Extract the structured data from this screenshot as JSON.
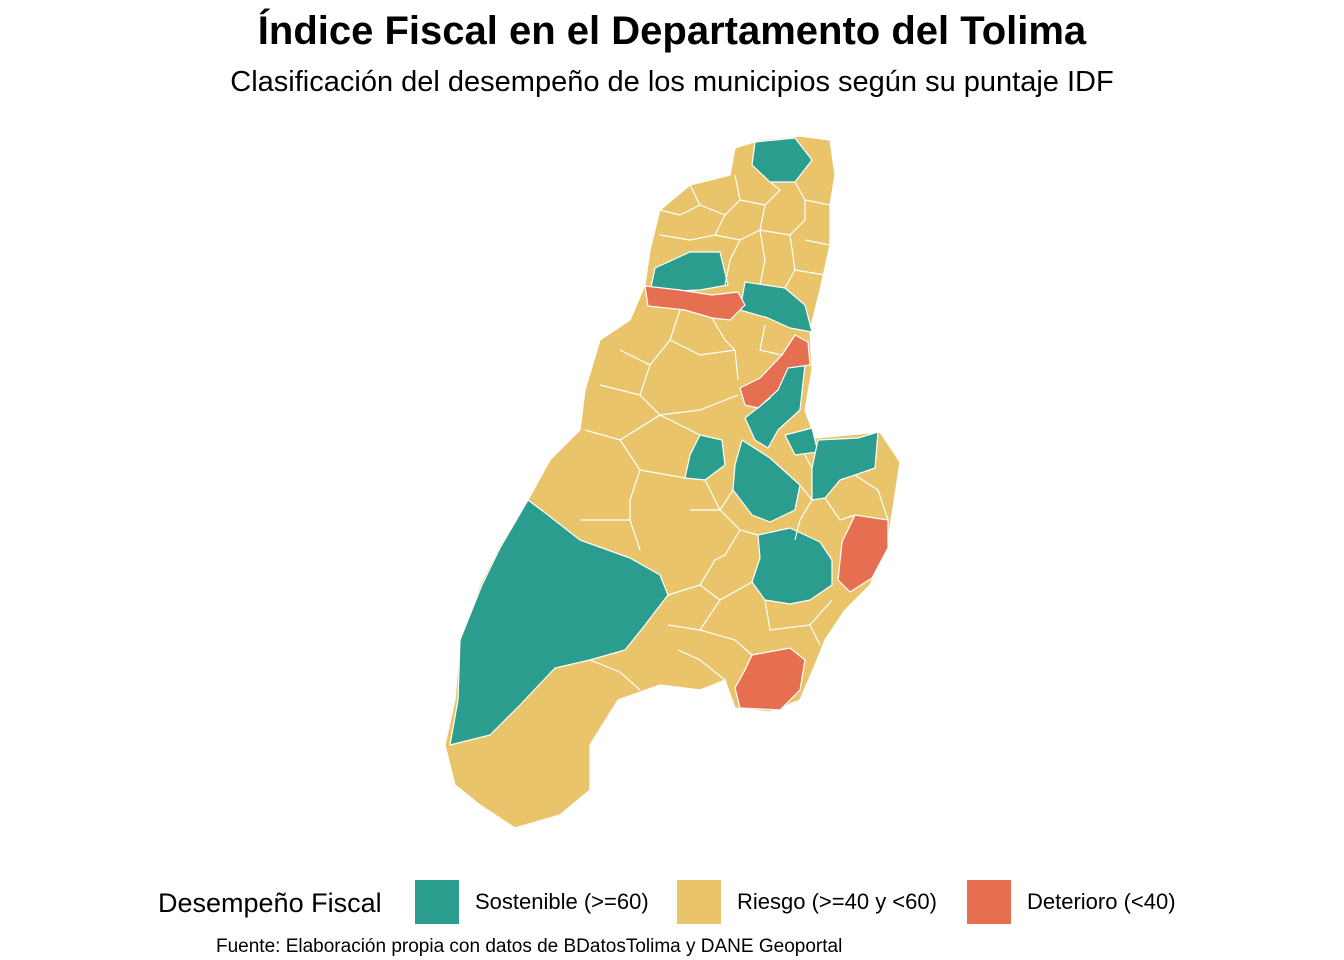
{
  "title": "Índice Fiscal en el Departamento del Tolima",
  "subtitle": "Clasificación del desempeño de los municipios según su puntaje IDF",
  "caption": "Fuente: Elaboración propia con datos de BDatosTolima y DANE Geoportal",
  "legend": {
    "title": "Desempeño Fiscal",
    "items": [
      {
        "key": "sostenible",
        "label": "Sostenible (>=60)",
        "color": "#2a9d8f"
      },
      {
        "key": "riesgo",
        "label": "Riesgo (>=40 y <60)",
        "color": "#e9c46a"
      },
      {
        "key": "deterioro",
        "label": "Deterioro (<40)",
        "color": "#e76f51"
      }
    ]
  },
  "map": {
    "border_color": "#ffffff",
    "base_class": "riesgo"
  }
}
